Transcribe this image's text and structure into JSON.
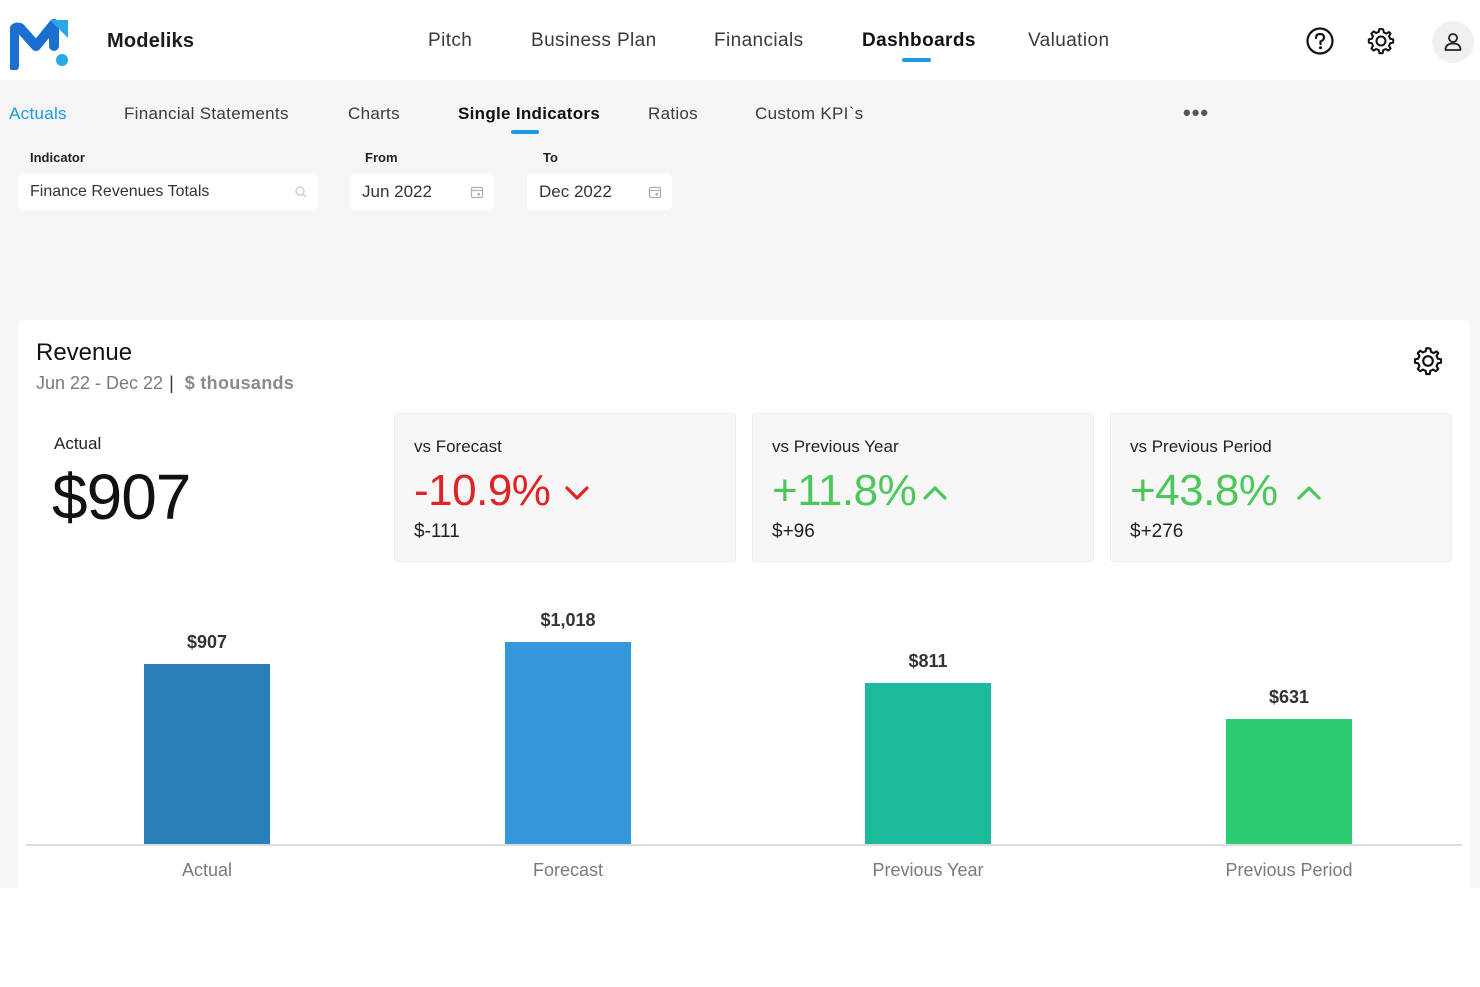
{
  "header": {
    "brand": "Modeliks",
    "nav": [
      "Pitch",
      "Business Plan",
      "Financials",
      "Dashboards",
      "Valuation"
    ],
    "active_nav": "Dashboards",
    "icons": [
      "help-icon",
      "gear-icon",
      "user-icon"
    ]
  },
  "subnav": {
    "tabs": [
      "Actuals",
      "Financial Statements",
      "Charts",
      "Single Indicators",
      "Ratios",
      "Custom KPI`s"
    ],
    "active": "Single Indicators",
    "more": "•••"
  },
  "filters": {
    "indicator_label": "Indicator",
    "indicator_value": "Finance Revenues Totals",
    "from_label": "From",
    "from_value": "Jun 2022",
    "to_label": "To",
    "to_value": "Dec 2022"
  },
  "card": {
    "title": "Revenue",
    "period": "Jun 22 - Dec 22",
    "unit": "$ thousands",
    "actual_label": "Actual",
    "actual_value": "$907",
    "kpis": [
      {
        "label": "vs Forecast",
        "value": "-10.9%",
        "delta": "$-111",
        "trend": "down"
      },
      {
        "label": "vs Previous Year",
        "value": "+11.8%",
        "delta": "$+96",
        "trend": "up"
      },
      {
        "label": "vs Previous Period",
        "value": "+43.8%",
        "delta": "$+276",
        "trend": "up"
      }
    ],
    "colors": {
      "negative": "#e02424",
      "positive": "#4cc85a",
      "accent": "#1e9be0"
    }
  },
  "chart_data": {
    "type": "bar",
    "categories": [
      "Actual",
      "Forecast",
      "Previous Year",
      "Previous Period"
    ],
    "values": [
      907,
      1018,
      811,
      631
    ],
    "data_labels": [
      "$907",
      "$1,018",
      "$811",
      "$631"
    ],
    "colors": [
      "#2980b9",
      "#3498db",
      "#1abc9c",
      "#2ecc71"
    ],
    "ylim": [
      0,
      1018
    ],
    "grid": false
  }
}
